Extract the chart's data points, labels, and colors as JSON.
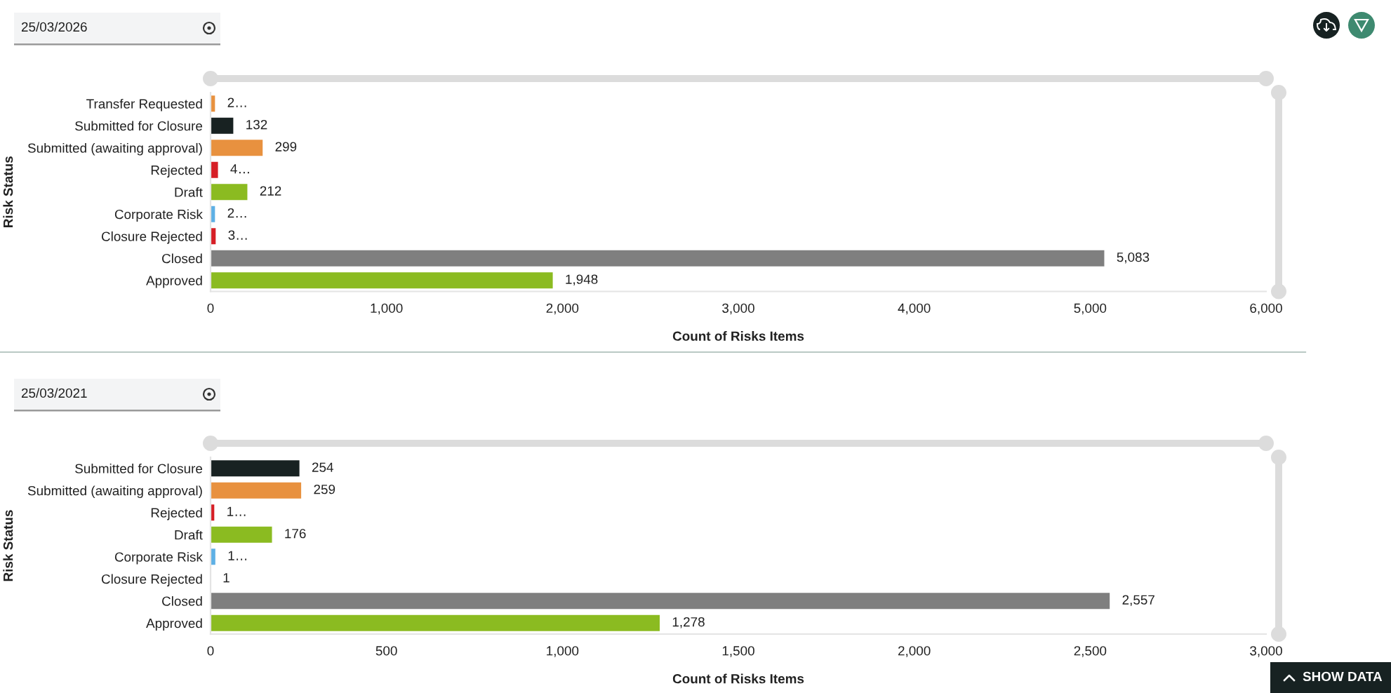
{
  "chart_data": [
    {
      "type": "bar",
      "orientation": "horizontal",
      "categories": [
        "Transfer Requested",
        "Submitted for Closure",
        "Submitted (awaiting approval)",
        "Rejected",
        "Draft",
        "Corporate Risk",
        "Closure Rejected",
        "Closed",
        "Approved"
      ],
      "values": [
        28,
        132,
        299,
        45,
        212,
        28,
        32,
        5083,
        1948
      ],
      "colors": [
        "#e8913f",
        "#182222",
        "#e8913f",
        "#d61f26",
        "#8bbb21",
        "#5eb0e5",
        "#d61f26",
        "#7f7f7f",
        "#8bbb21"
      ],
      "value_labels": [
        "2…",
        "132",
        "299",
        "4…",
        "212",
        "2…",
        "3…",
        "5,083",
        "1,948"
      ],
      "xlim": [
        0,
        6000
      ],
      "xticks": [
        0,
        {
          "value": 1000,
          "label": "1,000"
        },
        {
          "value": 2000,
          "label": "2,000"
        },
        {
          "value": 3000,
          "label": "3,000"
        },
        {
          "value": 4000,
          "label": "4,000"
        },
        {
          "value": 5000,
          "label": "5,000"
        },
        {
          "value": 6000,
          "label": "6,000"
        }
      ],
      "xlabel": "Count of Risks Items",
      "ylabel": "Risk Status",
      "annotations": [
        "25/03/2026"
      ]
    },
    {
      "type": "bar",
      "orientation": "horizontal",
      "categories": [
        "Submitted for Closure",
        "Submitted (awaiting approval)",
        "Rejected",
        "Draft",
        "Corporate Risk",
        "Closure Rejected",
        "Closed",
        "Approved"
      ],
      "values": [
        254,
        259,
        12,
        176,
        15,
        1,
        2557,
        1278
      ],
      "colors": [
        "#182222",
        "#e8913f",
        "#d61f26",
        "#8bbb21",
        "#5eb0e5",
        "#d61f26",
        "#7f7f7f",
        "#8bbb21"
      ],
      "value_labels": [
        "254",
        "259",
        "1…",
        "176",
        "1…",
        "1",
        "2,557",
        "1,278"
      ],
      "xlim": [
        0,
        3000
      ],
      "xticks": [
        0,
        500,
        {
          "value": 1000,
          "label": "1,000"
        },
        {
          "value": 1500,
          "label": "1,500"
        },
        {
          "value": 2000,
          "label": "2,000"
        },
        {
          "value": 2500,
          "label": "2,500"
        },
        {
          "value": 3000,
          "label": "3,000"
        }
      ],
      "xlabel": "Count of Risks Items",
      "ylabel": "Risk Status",
      "annotations": [
        "25/03/2021",
        "SHOW DATA"
      ]
    }
  ]
}
